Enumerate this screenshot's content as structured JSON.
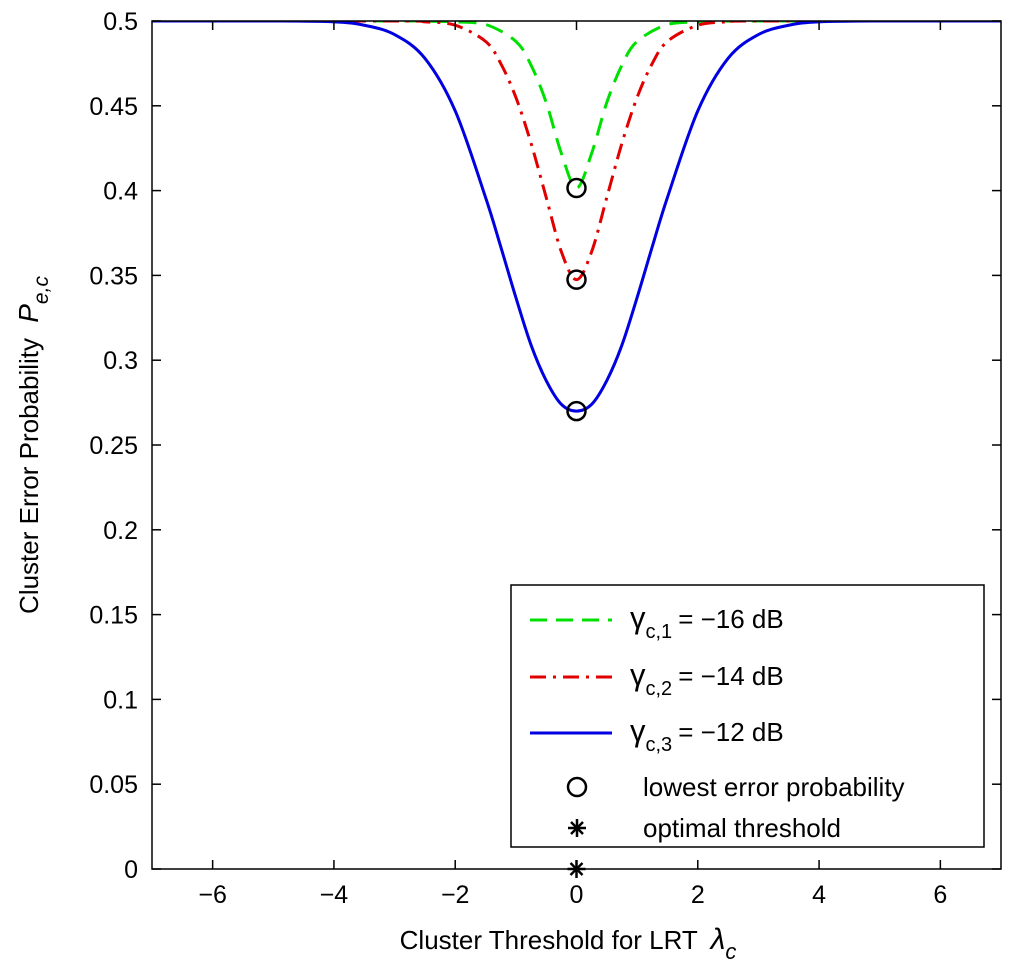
{
  "chart_data": {
    "type": "line",
    "title": "",
    "xlabel": "Cluster Threshold for LRT",
    "xlabel_symbol": "λ",
    "xlabel_symbol_sub": "c",
    "ylabel": "Cluster Error Probability",
    "ylabel_symbol": "P",
    "ylabel_symbol_sub": "e,c",
    "xlim": [
      -7,
      7
    ],
    "ylim": [
      0,
      0.5
    ],
    "xticks": [
      -6,
      -4,
      -2,
      0,
      2,
      4,
      6
    ],
    "xtick_labels": [
      "−6",
      "−4",
      "−2",
      "0",
      "2",
      "4",
      "6"
    ],
    "yticks": [
      0,
      0.05,
      0.1,
      0.15,
      0.2,
      0.25,
      0.3,
      0.35,
      0.4,
      0.45,
      0.5
    ],
    "ytick_labels": [
      "0",
      "0.05",
      "0.1",
      "0.15",
      "0.2",
      "0.25",
      "0.3",
      "0.35",
      "0.4",
      "0.45",
      "0.5"
    ],
    "grid": false,
    "legend_position": "bottom-right",
    "series": [
      {
        "name": "γc,1 = −16 dB",
        "symbol": "γ",
        "sub": "c,1",
        "value_text": "= −16 dB",
        "color": "#00e000",
        "style": "dashed",
        "x": [
          -7,
          -3,
          -2.5,
          -2,
          -1.5,
          -1,
          -0.75,
          -0.5,
          -0.25,
          0,
          0.25,
          0.5,
          0.75,
          1,
          1.5,
          2,
          2.5,
          3,
          7
        ],
        "y": [
          0.5,
          0.5,
          0.4999,
          0.4995,
          0.498,
          0.488,
          0.474,
          0.452,
          0.422,
          0.4015,
          0.422,
          0.452,
          0.474,
          0.488,
          0.498,
          0.4995,
          0.4999,
          0.5,
          0.5
        ]
      },
      {
        "name": "γc,2 = −14 dB",
        "symbol": "γ",
        "sub": "c,2",
        "value_text": "= −14 dB",
        "color": "#e00000",
        "style": "dashdot",
        "x": [
          -7,
          -3,
          -2.5,
          -2,
          -1.5,
          -1.25,
          -1,
          -0.75,
          -0.5,
          -0.25,
          0,
          0.25,
          0.5,
          0.75,
          1,
          1.25,
          1.5,
          2,
          2.5,
          3,
          7
        ],
        "y": [
          0.5,
          0.5,
          0.4995,
          0.4975,
          0.488,
          0.475,
          0.455,
          0.428,
          0.396,
          0.364,
          0.3475,
          0.364,
          0.396,
          0.428,
          0.455,
          0.475,
          0.488,
          0.4975,
          0.4995,
          0.5,
          0.5
        ]
      },
      {
        "name": "γc,3 = −12 dB",
        "symbol": "γ",
        "sub": "c,3",
        "value_text": "= −12 dB",
        "color": "#0000e0",
        "style": "solid",
        "x": [
          -7,
          -5,
          -4,
          -3.5,
          -3,
          -2.5,
          -2,
          -1.5,
          -1.25,
          -1,
          -0.75,
          -0.5,
          -0.25,
          0,
          0.25,
          0.5,
          0.75,
          1,
          1.25,
          1.5,
          2,
          2.5,
          3,
          3.5,
          4,
          5,
          7
        ],
        "y": [
          0.5,
          0.5,
          0.4995,
          0.4975,
          0.492,
          0.478,
          0.447,
          0.396,
          0.367,
          0.337,
          0.309,
          0.288,
          0.274,
          0.27,
          0.274,
          0.288,
          0.309,
          0.337,
          0.367,
          0.396,
          0.447,
          0.478,
          0.492,
          0.4975,
          0.4995,
          0.5,
          0.5
        ]
      }
    ],
    "markers": [
      {
        "type": "circle",
        "label": "lowest error probability",
        "points": [
          {
            "x": 0,
            "y": 0.4015
          },
          {
            "x": 0,
            "y": 0.3475
          },
          {
            "x": 0,
            "y": 0.27
          }
        ]
      },
      {
        "type": "asterisk",
        "label": "optimal threshold",
        "points": [
          {
            "x": 0,
            "y": 0
          }
        ]
      }
    ]
  }
}
